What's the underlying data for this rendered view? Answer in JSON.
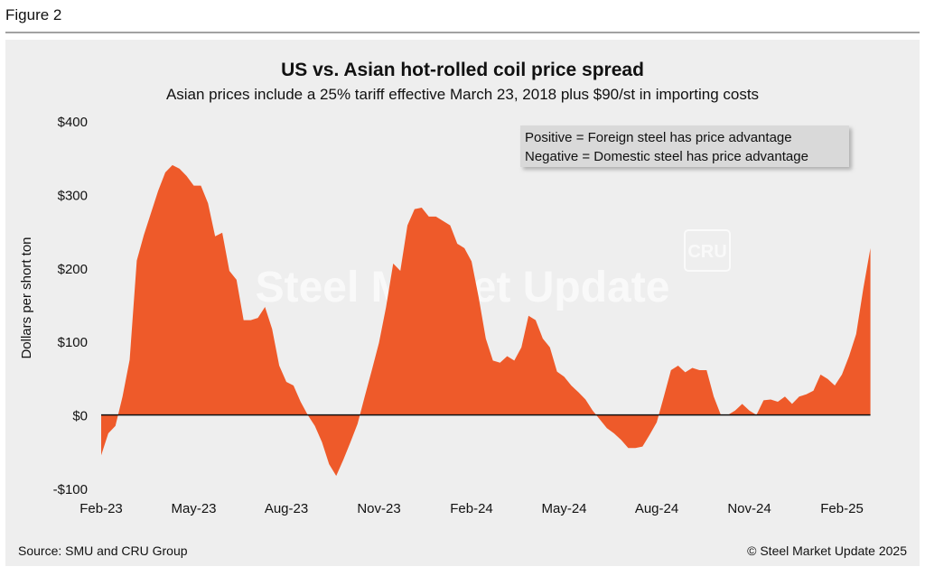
{
  "figure_label": "Figure 2",
  "source": "Source: SMU and CRU Group",
  "copyright": "© Steel Market Update 2025",
  "watermark": {
    "text": "Steel Market Update",
    "badge": "CRU"
  },
  "chart_data": {
    "type": "area",
    "title": "US vs. Asian hot-rolled coil price spread",
    "subtitle": "Asian prices include a 25% tariff effective March 23, 2018 plus $90/st in importing costs",
    "y_label": "Dollars per short ton",
    "annotations": [
      "Positive = Foreign steel has price advantage",
      "Negative = Domestic steel has price advantage"
    ],
    "categories": [
      "Feb-23",
      null,
      null,
      null,
      null,
      null,
      null,
      null,
      null,
      null,
      null,
      null,
      null,
      "May-23",
      null,
      null,
      null,
      null,
      null,
      null,
      null,
      null,
      null,
      null,
      null,
      null,
      "Aug-23",
      null,
      null,
      null,
      null,
      null,
      null,
      null,
      null,
      null,
      null,
      null,
      null,
      "Nov-23",
      null,
      null,
      null,
      null,
      null,
      null,
      null,
      null,
      null,
      null,
      null,
      null,
      "Feb-24",
      null,
      null,
      null,
      null,
      null,
      null,
      null,
      null,
      null,
      null,
      null,
      null,
      "May-24",
      null,
      null,
      null,
      null,
      null,
      null,
      null,
      null,
      null,
      null,
      null,
      null,
      "Aug-24",
      null,
      null,
      null,
      null,
      null,
      null,
      null,
      null,
      null,
      null,
      null,
      null,
      "Nov-24",
      null,
      null,
      null,
      null,
      null,
      null,
      null,
      null,
      null,
      null,
      null,
      null,
      "Feb-25",
      null,
      null,
      null,
      null
    ],
    "series": [
      {
        "name": "Price spread",
        "color": "#ee5a2a",
        "values": [
          -55,
          -25,
          -15,
          25,
          75,
          210,
          245,
          275,
          305,
          330,
          340,
          335,
          325,
          312,
          312,
          288,
          243,
          248,
          196,
          184,
          129,
          129,
          132,
          147,
          117,
          67,
          45,
          40,
          18,
          0,
          -15,
          -37,
          -67,
          -83,
          -61,
          -37,
          -12,
          25,
          61,
          98,
          147,
          206,
          196,
          258,
          280,
          282,
          270,
          270,
          264,
          258,
          233,
          227,
          209,
          160,
          104,
          74,
          71,
          80,
          74,
          92,
          135,
          129,
          104,
          92,
          59,
          52,
          40,
          31,
          21,
          6,
          -6,
          -18,
          -25,
          -34,
          -45,
          -45,
          -43,
          -27,
          -10,
          25,
          61,
          67,
          58,
          64,
          61,
          61,
          25,
          0,
          0,
          6,
          15,
          6,
          0,
          20,
          21,
          18,
          25,
          15,
          25,
          28,
          33,
          55,
          49,
          40,
          55,
          80,
          110,
          172,
          227
        ]
      }
    ],
    "ylim": [
      -100,
      400
    ],
    "yticks": [
      {
        "value": -100,
        "label": "-$100"
      },
      {
        "value": 0,
        "label": "$0"
      },
      {
        "value": 100,
        "label": "$100"
      },
      {
        "value": 200,
        "label": "$200"
      },
      {
        "value": 300,
        "label": "$300"
      },
      {
        "value": 400,
        "label": "$400"
      }
    ],
    "zero_line": true
  }
}
